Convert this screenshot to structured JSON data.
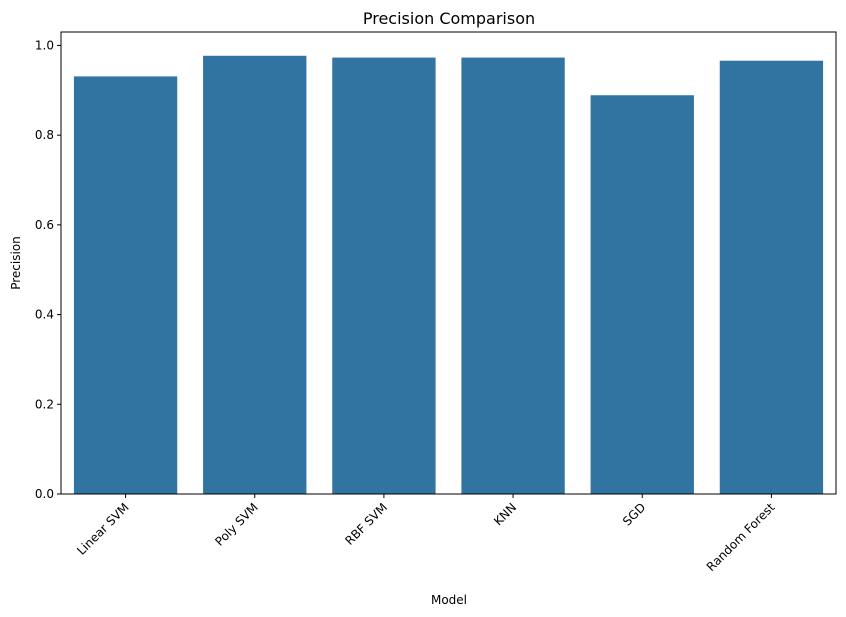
{
  "chart_data": {
    "type": "bar",
    "title": "Precision Comparison",
    "xlabel": "Model",
    "ylabel": "Precision",
    "categories": [
      "Linear SVM",
      "Poly SVM",
      "RBF SVM",
      "KNN",
      "SGD",
      "Random Forest"
    ],
    "values": [
      0.931,
      0.977,
      0.973,
      0.973,
      0.889,
      0.966
    ],
    "ylim": [
      0,
      1.03
    ],
    "yticks": [
      "0.0",
      "0.2",
      "0.4",
      "0.6",
      "0.8",
      "1.0"
    ],
    "ytick_values": [
      0,
      0.2,
      0.4,
      0.6,
      0.8,
      1.0
    ],
    "grid": false,
    "bar_color": "#3274a1",
    "xtick_rotation": "45 degrees"
  }
}
